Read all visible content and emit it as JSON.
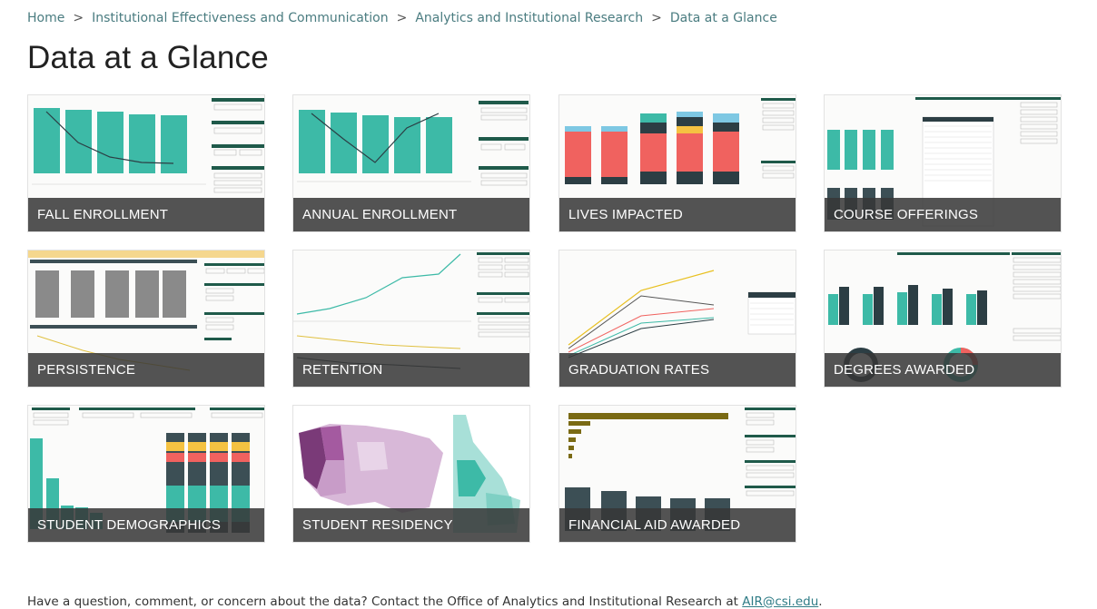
{
  "breadcrumb": {
    "items": [
      "Home",
      "Institutional Effectiveness and Communication",
      "Analytics and Institutional Research"
    ],
    "separator": ">",
    "current": "Data at a Glance"
  },
  "page_title": "Data at a Glance",
  "tiles": [
    {
      "label": "FALL ENROLLMENT"
    },
    {
      "label": "ANNUAL ENROLLMENT"
    },
    {
      "label": "LIVES IMPACTED"
    },
    {
      "label": "COURSE OFFERINGS"
    },
    {
      "label": "PERSISTENCE"
    },
    {
      "label": "RETENTION"
    },
    {
      "label": "GRADUATION RATES"
    },
    {
      "label": "DEGREES AWARDED"
    },
    {
      "label": "STUDENT DEMOGRAPHICS"
    },
    {
      "label": "STUDENT RESIDENCY"
    },
    {
      "label": "FINANCIAL AID AWARDED"
    }
  ],
  "footer": {
    "text": "Have a question, comment, or concern about the data? Contact the Office of Analytics and Institutional Research at",
    "email": "AIR@csi.edu",
    "end": "."
  },
  "colors": {
    "teal": "#3dbaa7",
    "dark_slate": "#3c4f55",
    "header_green": "#1f5a4a",
    "link": "#4a7c80",
    "label_bar": "#373737"
  }
}
